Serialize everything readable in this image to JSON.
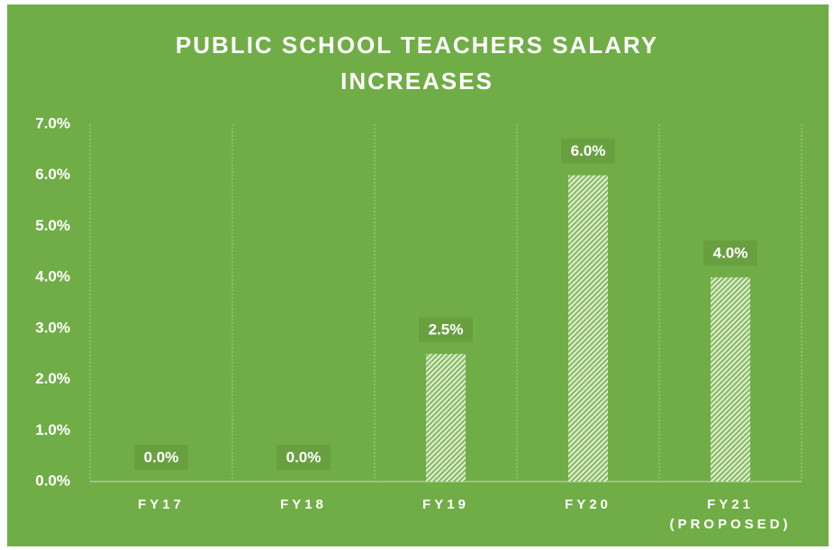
{
  "chart_data": {
    "type": "bar",
    "title": "PUBLIC SCHOOL TEACHERS SALARY INCREASES",
    "categories": [
      "FY17",
      "FY18",
      "FY19",
      "FY20",
      "FY21 (PROPOSED)"
    ],
    "values": [
      0,
      0,
      2.5,
      6,
      4
    ],
    "value_labels": [
      "0.0%",
      "0.0%",
      "2.5%",
      "6.0%",
      "4.0%"
    ],
    "color": "#ffffff",
    "ylim": [
      0,
      7
    ],
    "yticks": [
      {
        "value": 0,
        "label": "0.0%"
      },
      {
        "value": 1,
        "label": "1.0%"
      },
      {
        "value": 2,
        "label": "2.0%"
      },
      {
        "value": 3,
        "label": "3.0%"
      },
      {
        "value": 4,
        "label": "4.0%"
      },
      {
        "value": 5,
        "label": "5.0%"
      },
      {
        "value": 6,
        "label": "6.0%"
      },
      {
        "value": 7,
        "label": "7.0%"
      }
    ],
    "grid": false
  }
}
